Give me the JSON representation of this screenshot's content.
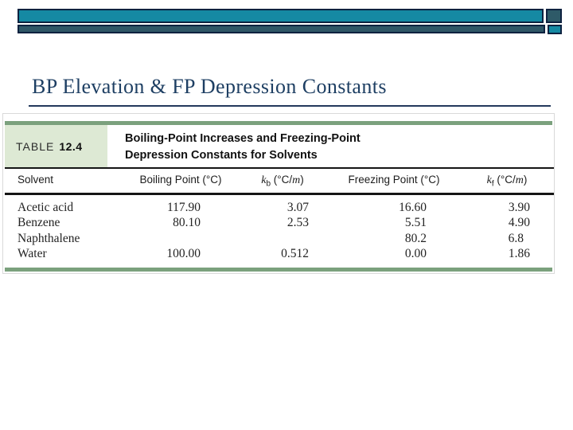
{
  "title": "BP Elevation & FP Depression Constants",
  "colors": {
    "teal": "#1589a3",
    "slate": "#2f5666",
    "navy_border": "#0e2240",
    "title_navy": "#1e3f63",
    "sage_green": "#7ba17d",
    "light_green": "#dde9d4"
  },
  "table": {
    "label_prefix": "TABLE",
    "label_number": "12.4",
    "caption_line1": "Boiling-Point Increases and Freezing-Point",
    "caption_line2": "Depression Constants for Solvents",
    "columns": {
      "solvent": "Solvent",
      "bp": "Boiling Point (°C)",
      "kb": {
        "k": "k",
        "sub": "b",
        "unit_prefix": " (°C/",
        "unit_m": "m",
        "unit_suffix": ")"
      },
      "fp": "Freezing Point (°C)",
      "kf": {
        "k": "k",
        "sub": "f",
        "unit_prefix": " (°C/",
        "unit_m": "m",
        "unit_suffix": ")"
      }
    },
    "rows": [
      {
        "solvent": "Acetic acid",
        "bp": "117.90",
        "kb": "3.07",
        "fp": "16.60",
        "kf": "3.90"
      },
      {
        "solvent": "Benzene",
        "bp": "80.10",
        "kb": "2.53",
        "fp": "5.51",
        "kf": "4.90"
      },
      {
        "solvent": "Naphthalene",
        "bp": "",
        "kb": "",
        "fp": "80.2",
        "kf": "6.8"
      },
      {
        "solvent": "Water",
        "bp": "100.00",
        "kb": "0.512",
        "fp": "0.00",
        "kf": "1.86"
      }
    ]
  }
}
